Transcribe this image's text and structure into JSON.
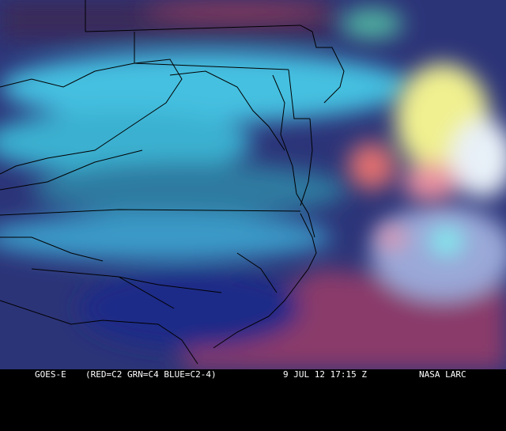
{
  "caption": {
    "satellite": "GOES-E",
    "channels": "(RED=C2 GRN=C4 BLUE=C2-4)",
    "datetime": "9 JUL 12 17:15 Z",
    "credit": "NASA LARC"
  },
  "colors": {
    "clear_land": "#2a2f7a",
    "ocean": "#8a3a6a",
    "low_cloud": "#40c8e8",
    "high_cloud": "#f0f090",
    "convective": "#e87a8a",
    "boundaries": "#000000"
  }
}
